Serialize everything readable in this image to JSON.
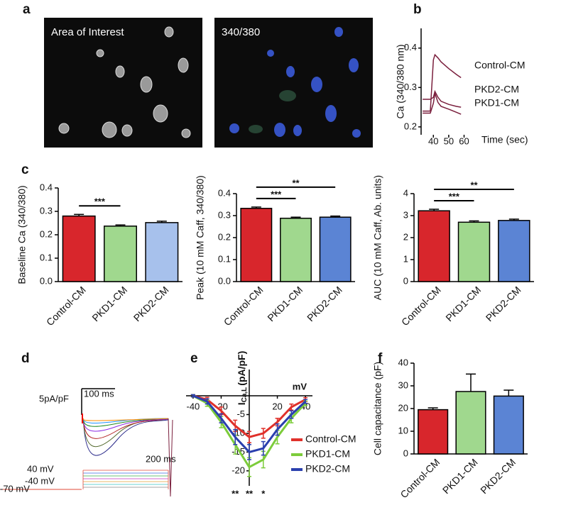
{
  "panel_labels": [
    "a",
    "b",
    "c",
    "d",
    "e",
    "f"
  ],
  "images": [
    {
      "label": "Area of Interest"
    },
    {
      "label": "340/380"
    }
  ],
  "panel_d": {
    "scale_current": "5pA/pF",
    "scale_time": "100 ms",
    "step_time": "200 ms",
    "v_high": "40 mV",
    "v_low": "-40 mV",
    "v_hold": "-70 mV"
  },
  "chart_data": [
    {
      "type": "line",
      "ylabel": "Ca (340/380 nm)",
      "xlabel": "Time (sec)",
      "x": [
        33,
        38,
        40,
        41,
        43,
        45,
        50,
        55,
        58
      ],
      "series": [
        {
          "name": "Control-CM",
          "color": "#7a1f3d",
          "values": [
            0.24,
            0.24,
            0.37,
            0.383,
            0.375,
            0.365,
            0.348,
            0.333,
            0.325
          ]
        },
        {
          "name": "PKD2-CM",
          "color": "#7a1f3d",
          "values": [
            0.27,
            0.27,
            0.275,
            0.29,
            0.275,
            0.265,
            0.257,
            0.252,
            0.25
          ]
        },
        {
          "name": "PKD1-CM",
          "color": "#7a1f3d",
          "values": [
            0.235,
            0.235,
            0.26,
            0.285,
            0.262,
            0.252,
            0.245,
            0.237,
            0.232
          ]
        }
      ],
      "xlim": [
        32,
        63
      ],
      "ylim": [
        0.18,
        0.45
      ],
      "xticks": [
        40,
        50,
        60
      ],
      "yticks": [
        0.2,
        0.3,
        0.4
      ]
    },
    {
      "type": "bar",
      "ylabel": "Baseline Ca (340/380)",
      "categories": [
        "Control-CM",
        "PKD1-CM",
        "PKD2-CM"
      ],
      "values": [
        0.28,
        0.237,
        0.252
      ],
      "errors": [
        0.007,
        0.005,
        0.006
      ],
      "colors": [
        "#d8262c",
        "#a0d88e",
        "#a7c1ec"
      ],
      "ylim": [
        0,
        0.4
      ],
      "yticks": [
        {
          "value": 0,
          "label": "0.0"
        },
        0.1,
        0.2,
        0.3,
        0.4
      ],
      "annotations": [
        {
          "text": "***",
          "between": [
            "Control-CM",
            "PKD1-CM"
          ]
        }
      ]
    },
    {
      "type": "bar",
      "ylabel": "Peak (10 mM Caff, 340/380)",
      "categories": [
        "Control-CM",
        "PKD1-CM",
        "PKD2-CM"
      ],
      "values": [
        0.333,
        0.288,
        0.293
      ],
      "errors": [
        0.006,
        0.005,
        0.005
      ],
      "colors": [
        "#d8262c",
        "#a0d88e",
        "#5b84d4"
      ],
      "ylim": [
        0,
        0.4
      ],
      "yticks": [
        {
          "value": 0,
          "label": "0.0"
        },
        0.1,
        0.2,
        0.3,
        0.4
      ],
      "annotations": [
        {
          "text": "***",
          "between": [
            "Control-CM",
            "PKD1-CM"
          ]
        },
        {
          "text": "**",
          "between": [
            "Control-CM",
            "PKD2-CM"
          ]
        }
      ]
    },
    {
      "type": "bar",
      "ylabel": "AUC (10 mM Caff, Ab. units)",
      "categories": [
        "Control-CM",
        "PKD1-CM",
        "PKD2-CM"
      ],
      "values": [
        3.22,
        2.7,
        2.78
      ],
      "errors": [
        0.07,
        0.06,
        0.06
      ],
      "colors": [
        "#d8262c",
        "#a0d88e",
        "#5b84d4"
      ],
      "ylim": [
        0,
        4
      ],
      "yticks": [
        0,
        1,
        2,
        3,
        4
      ],
      "annotations": [
        {
          "text": "***",
          "between": [
            "Control-CM",
            "PKD1-CM"
          ]
        },
        {
          "text": "**",
          "between": [
            "Control-CM",
            "PKD2-CM"
          ]
        }
      ]
    },
    {
      "type": "line",
      "ylabel": {
        "main": "I",
        "sub": "Ca,L",
        "unit": "(pA/pF)"
      },
      "xlabel": "mV",
      "x": [
        -40,
        -30,
        -20,
        -10,
        0,
        10,
        20,
        30,
        40
      ],
      "series": [
        {
          "name": "Control-CM",
          "color": "#e0302a",
          "values": [
            0,
            -1,
            -4,
            -8,
            -11,
            -10,
            -7,
            -3,
            -1
          ],
          "errors": [
            0.3,
            0.6,
            1,
            1.5,
            1.5,
            1.3,
            1,
            0.8,
            0.5
          ]
        },
        {
          "name": "PKD1-CM",
          "color": "#7ccc3a",
          "values": [
            0,
            -2,
            -7,
            -13,
            -19,
            -17,
            -11,
            -6,
            -2
          ],
          "errors": [
            0.3,
            0.8,
            1.5,
            2.5,
            2.5,
            2.2,
            1.8,
            1.2,
            0.6
          ]
        },
        {
          "name": "PKD2-CM",
          "color": "#2a3fae",
          "values": [
            0,
            -1.5,
            -6,
            -11,
            -15,
            -14,
            -9,
            -5,
            -1.5
          ],
          "errors": [
            0.3,
            0.7,
            1.2,
            2,
            2,
            1.8,
            1.5,
            1,
            0.5
          ]
        }
      ],
      "xlim": [
        -45,
        45
      ],
      "ylim": [
        -24,
        7
      ],
      "xticks": [
        -40,
        -20,
        20,
        40
      ],
      "yticks": [
        -5,
        -10,
        -15,
        -20
      ],
      "legend": "lower right",
      "annotations": [
        {
          "text": "**",
          "x": -10
        },
        {
          "text": "**",
          "x": 0
        },
        {
          "text": "*",
          "x": 10
        }
      ]
    },
    {
      "type": "bar",
      "ylabel": "Cell capacitance (pF)",
      "categories": [
        "Control-CM",
        "PKD1-CM",
        "PKD2-CM"
      ],
      "values": [
        19.5,
        27.5,
        25.5
      ],
      "errors": [
        0.8,
        7.7,
        2.6
      ],
      "colors": [
        "#d8262c",
        "#a0d88e",
        "#5b84d4"
      ],
      "ylim": [
        0,
        40
      ],
      "yticks": [
        0,
        10,
        20,
        30,
        40
      ]
    }
  ]
}
